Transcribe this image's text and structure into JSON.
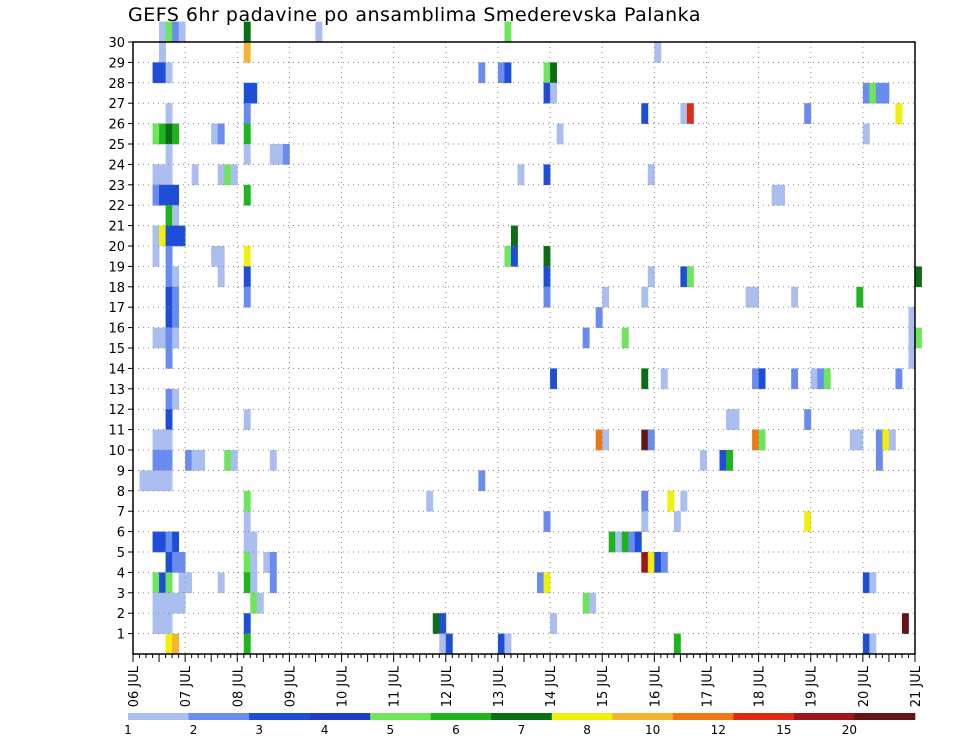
{
  "chart_data": {
    "type": "heatmap",
    "title": "GEFS 6hr padavine po ansamblima Smederevska Palanka",
    "x_start": "2022-07-06",
    "x_end": "2022-07-21",
    "x_step_hours": 6,
    "xtick_labels": [
      "06 JUL",
      "07 JUL",
      "08 JUL",
      "09 JUL",
      "10 JUL",
      "11 JUL",
      "12 JUL",
      "13 JUL",
      "14 JUL",
      "15 JUL",
      "16 JUL",
      "17 JUL",
      "18 JUL",
      "19 JUL",
      "20 JUL",
      "21 JUL"
    ],
    "ytick_labels": [
      "1",
      "2",
      "3",
      "4",
      "5",
      "6",
      "7",
      "8",
      "9",
      "10",
      "11",
      "12",
      "13",
      "14",
      "15",
      "16",
      "17",
      "18",
      "19",
      "20",
      "21",
      "22",
      "23",
      "24",
      "25",
      "26",
      "27",
      "28",
      "29",
      "30"
    ],
    "ylim": [
      0,
      30
    ],
    "grid": true,
    "legend": {
      "position": "bottom",
      "labels": [
        "1",
        "2",
        "3",
        "4",
        "5",
        "6",
        "7",
        "8",
        "10",
        "12",
        "15",
        "20"
      ],
      "colors": [
        "#aabef0",
        "#6a8cf0",
        "#1e4ed8",
        "#1e3cc8",
        "#6ee65a",
        "#1eb41e",
        "#0a6e14",
        "#f0f00a",
        "#f5b432",
        "#f07814",
        "#dc2d14",
        "#a0141e",
        "#641414"
      ]
    },
    "series": [
      {
        "member": 30,
        "cells": [
          [
            4,
            1
          ],
          [
            5,
            5
          ],
          [
            6,
            2
          ],
          [
            7,
            1
          ],
          [
            17,
            7
          ],
          [
            28,
            1
          ],
          [
            57,
            5
          ]
        ]
      },
      {
        "member": 29,
        "cells": [
          [
            4,
            1
          ],
          [
            17,
            9
          ],
          [
            80,
            1
          ]
        ]
      },
      {
        "member": 28,
        "cells": [
          [
            3,
            3
          ],
          [
            4,
            3
          ],
          [
            5,
            1
          ],
          [
            53,
            2
          ],
          [
            56,
            2
          ],
          [
            57,
            3
          ],
          [
            63,
            5
          ],
          [
            64,
            7
          ]
        ]
      },
      {
        "member": 27,
        "cells": [
          [
            17,
            3
          ],
          [
            18,
            3
          ],
          [
            63,
            3
          ],
          [
            64,
            1
          ],
          [
            112,
            2
          ],
          [
            113,
            5
          ],
          [
            114,
            2
          ],
          [
            115,
            2
          ]
        ]
      },
      {
        "member": 26,
        "cells": [
          [
            5,
            1
          ],
          [
            17,
            2
          ],
          [
            78,
            3
          ],
          [
            84,
            1
          ],
          [
            85,
            11
          ],
          [
            103,
            2
          ],
          [
            117,
            8
          ]
        ]
      },
      {
        "member": 25,
        "cells": [
          [
            3,
            5
          ],
          [
            4,
            6
          ],
          [
            5,
            7
          ],
          [
            6,
            6
          ],
          [
            12,
            1
          ],
          [
            13,
            2
          ],
          [
            17,
            6
          ],
          [
            65,
            1
          ],
          [
            112,
            1
          ]
        ]
      },
      {
        "member": 24,
        "cells": [
          [
            5,
            1
          ],
          [
            17,
            1
          ],
          [
            21,
            1
          ],
          [
            22,
            1
          ],
          [
            23,
            2
          ]
        ]
      },
      {
        "member": 23,
        "cells": [
          [
            3,
            1
          ],
          [
            4,
            1
          ],
          [
            5,
            1
          ],
          [
            9,
            1
          ],
          [
            13,
            1
          ],
          [
            14,
            5
          ],
          [
            15,
            1
          ],
          [
            59,
            1
          ],
          [
            63,
            3
          ],
          [
            79,
            1
          ]
        ]
      },
      {
        "member": 22,
        "cells": [
          [
            3,
            2
          ],
          [
            4,
            3
          ],
          [
            5,
            3
          ],
          [
            6,
            3
          ],
          [
            17,
            6
          ],
          [
            98,
            1
          ],
          [
            99,
            1
          ]
        ]
      },
      {
        "member": 21,
        "cells": [
          [
            5,
            6
          ],
          [
            6,
            1
          ]
        ]
      },
      {
        "member": 20,
        "cells": [
          [
            3,
            1
          ],
          [
            4,
            8
          ],
          [
            5,
            3
          ],
          [
            6,
            3
          ],
          [
            7,
            3
          ],
          [
            58,
            7
          ]
        ]
      },
      {
        "member": 19,
        "cells": [
          [
            3,
            1
          ],
          [
            5,
            2
          ],
          [
            12,
            1
          ],
          [
            13,
            1
          ],
          [
            17,
            8
          ],
          [
            57,
            5
          ],
          [
            58,
            3
          ],
          [
            63,
            7
          ]
        ]
      },
      {
        "member": 18,
        "cells": [
          [
            5,
            2
          ],
          [
            6,
            1
          ],
          [
            13,
            1
          ],
          [
            17,
            3
          ],
          [
            63,
            3
          ],
          [
            79,
            1
          ],
          [
            84,
            3
          ],
          [
            85,
            5
          ],
          [
            120,
            7
          ]
        ]
      },
      {
        "member": 17,
        "cells": [
          [
            5,
            3
          ],
          [
            6,
            2
          ],
          [
            17,
            2
          ],
          [
            63,
            2
          ],
          [
            72,
            1
          ],
          [
            78,
            1
          ],
          [
            94,
            1
          ],
          [
            95,
            1
          ],
          [
            101,
            1
          ],
          [
            111,
            6
          ]
        ]
      },
      {
        "member": 16,
        "cells": [
          [
            5,
            3
          ],
          [
            6,
            2
          ],
          [
            71,
            2
          ],
          [
            119,
            1
          ]
        ]
      },
      {
        "member": 15,
        "cells": [
          [
            3,
            1
          ],
          [
            4,
            1
          ],
          [
            5,
            2
          ],
          [
            6,
            1
          ],
          [
            69,
            2
          ],
          [
            75,
            5
          ],
          [
            119,
            1
          ],
          [
            120,
            5
          ]
        ]
      },
      {
        "member": 14,
        "cells": [
          [
            5,
            2
          ],
          [
            119,
            1
          ]
        ]
      },
      {
        "member": 13,
        "cells": [
          [
            64,
            3
          ],
          [
            78,
            7
          ],
          [
            81,
            1
          ],
          [
            95,
            2
          ],
          [
            96,
            3
          ],
          [
            101,
            2
          ],
          [
            104,
            1
          ],
          [
            105,
            2
          ],
          [
            106,
            5
          ],
          [
            117,
            2
          ]
        ]
      },
      {
        "member": 12,
        "cells": [
          [
            5,
            2
          ],
          [
            6,
            1
          ]
        ]
      },
      {
        "member": 11,
        "cells": [
          [
            5,
            3
          ],
          [
            17,
            1
          ],
          [
            91,
            1
          ],
          [
            92,
            1
          ],
          [
            103,
            2
          ]
        ]
      },
      {
        "member": 10,
        "cells": [
          [
            3,
            1
          ],
          [
            4,
            1
          ],
          [
            5,
            1
          ],
          [
            71,
            10
          ],
          [
            72,
            1
          ],
          [
            78,
            13
          ],
          [
            79,
            2
          ],
          [
            95,
            10
          ],
          [
            96,
            5
          ],
          [
            110,
            1
          ],
          [
            111,
            1
          ],
          [
            114,
            2
          ],
          [
            115,
            8
          ],
          [
            116,
            1
          ]
        ]
      },
      {
        "member": 9,
        "cells": [
          [
            3,
            2
          ],
          [
            4,
            2
          ],
          [
            5,
            2
          ],
          [
            8,
            2
          ],
          [
            9,
            1
          ],
          [
            10,
            1
          ],
          [
            14,
            5
          ],
          [
            15,
            1
          ],
          [
            21,
            1
          ],
          [
            87,
            1
          ],
          [
            90,
            3
          ],
          [
            91,
            6
          ],
          [
            114,
            2
          ]
        ]
      },
      {
        "member": 8,
        "cells": [
          [
            1,
            1
          ],
          [
            2,
            1
          ],
          [
            3,
            1
          ],
          [
            4,
            1
          ],
          [
            5,
            1
          ],
          [
            53,
            2
          ]
        ]
      },
      {
        "member": 7,
        "cells": [
          [
            17,
            5
          ],
          [
            45,
            1
          ],
          [
            78,
            2
          ],
          [
            82,
            8
          ],
          [
            84,
            1
          ]
        ]
      },
      {
        "member": 6,
        "cells": [
          [
            17,
            1
          ],
          [
            63,
            2
          ],
          [
            78,
            1
          ],
          [
            83,
            1
          ],
          [
            103,
            8
          ]
        ]
      },
      {
        "member": 5,
        "cells": [
          [
            3,
            3
          ],
          [
            4,
            3
          ],
          [
            5,
            2
          ],
          [
            6,
            3
          ],
          [
            17,
            1
          ],
          [
            18,
            1
          ],
          [
            73,
            6
          ],
          [
            74,
            1
          ],
          [
            75,
            6
          ],
          [
            76,
            2
          ],
          [
            77,
            3
          ]
        ]
      },
      {
        "member": 4,
        "cells": [
          [
            5,
            3
          ],
          [
            6,
            2
          ],
          [
            7,
            2
          ],
          [
            17,
            5
          ],
          [
            18,
            1
          ],
          [
            20,
            1
          ],
          [
            21,
            2
          ],
          [
            78,
            12
          ],
          [
            79,
            8
          ],
          [
            80,
            3
          ],
          [
            81,
            2
          ]
        ]
      },
      {
        "member": 3,
        "cells": [
          [
            3,
            5
          ],
          [
            4,
            3
          ],
          [
            5,
            5
          ],
          [
            7,
            1
          ],
          [
            8,
            1
          ],
          [
            13,
            1
          ],
          [
            17,
            6
          ],
          [
            18,
            1
          ],
          [
            21,
            2
          ],
          [
            62,
            2
          ],
          [
            63,
            8
          ],
          [
            112,
            3
          ],
          [
            113,
            1
          ]
        ]
      },
      {
        "member": 2,
        "cells": [
          [
            3,
            1
          ],
          [
            4,
            1
          ],
          [
            5,
            1
          ],
          [
            6,
            1
          ],
          [
            7,
            1
          ],
          [
            18,
            5
          ],
          [
            19,
            1
          ],
          [
            69,
            5
          ],
          [
            70,
            1
          ]
        ]
      },
      {
        "member": 1,
        "cells": [
          [
            3,
            1
          ],
          [
            4,
            1
          ],
          [
            5,
            1
          ],
          [
            17,
            3
          ],
          [
            46,
            7
          ],
          [
            47,
            3
          ],
          [
            64,
            1
          ],
          [
            118,
            13
          ]
        ]
      },
      {
        "member": 0,
        "cells": [
          [
            5,
            8
          ],
          [
            6,
            9
          ],
          [
            17,
            6
          ],
          [
            47,
            1
          ],
          [
            48,
            3
          ],
          [
            56,
            3
          ],
          [
            57,
            1
          ],
          [
            83,
            6
          ],
          [
            112,
            3
          ],
          [
            113,
            1
          ]
        ]
      }
    ]
  }
}
